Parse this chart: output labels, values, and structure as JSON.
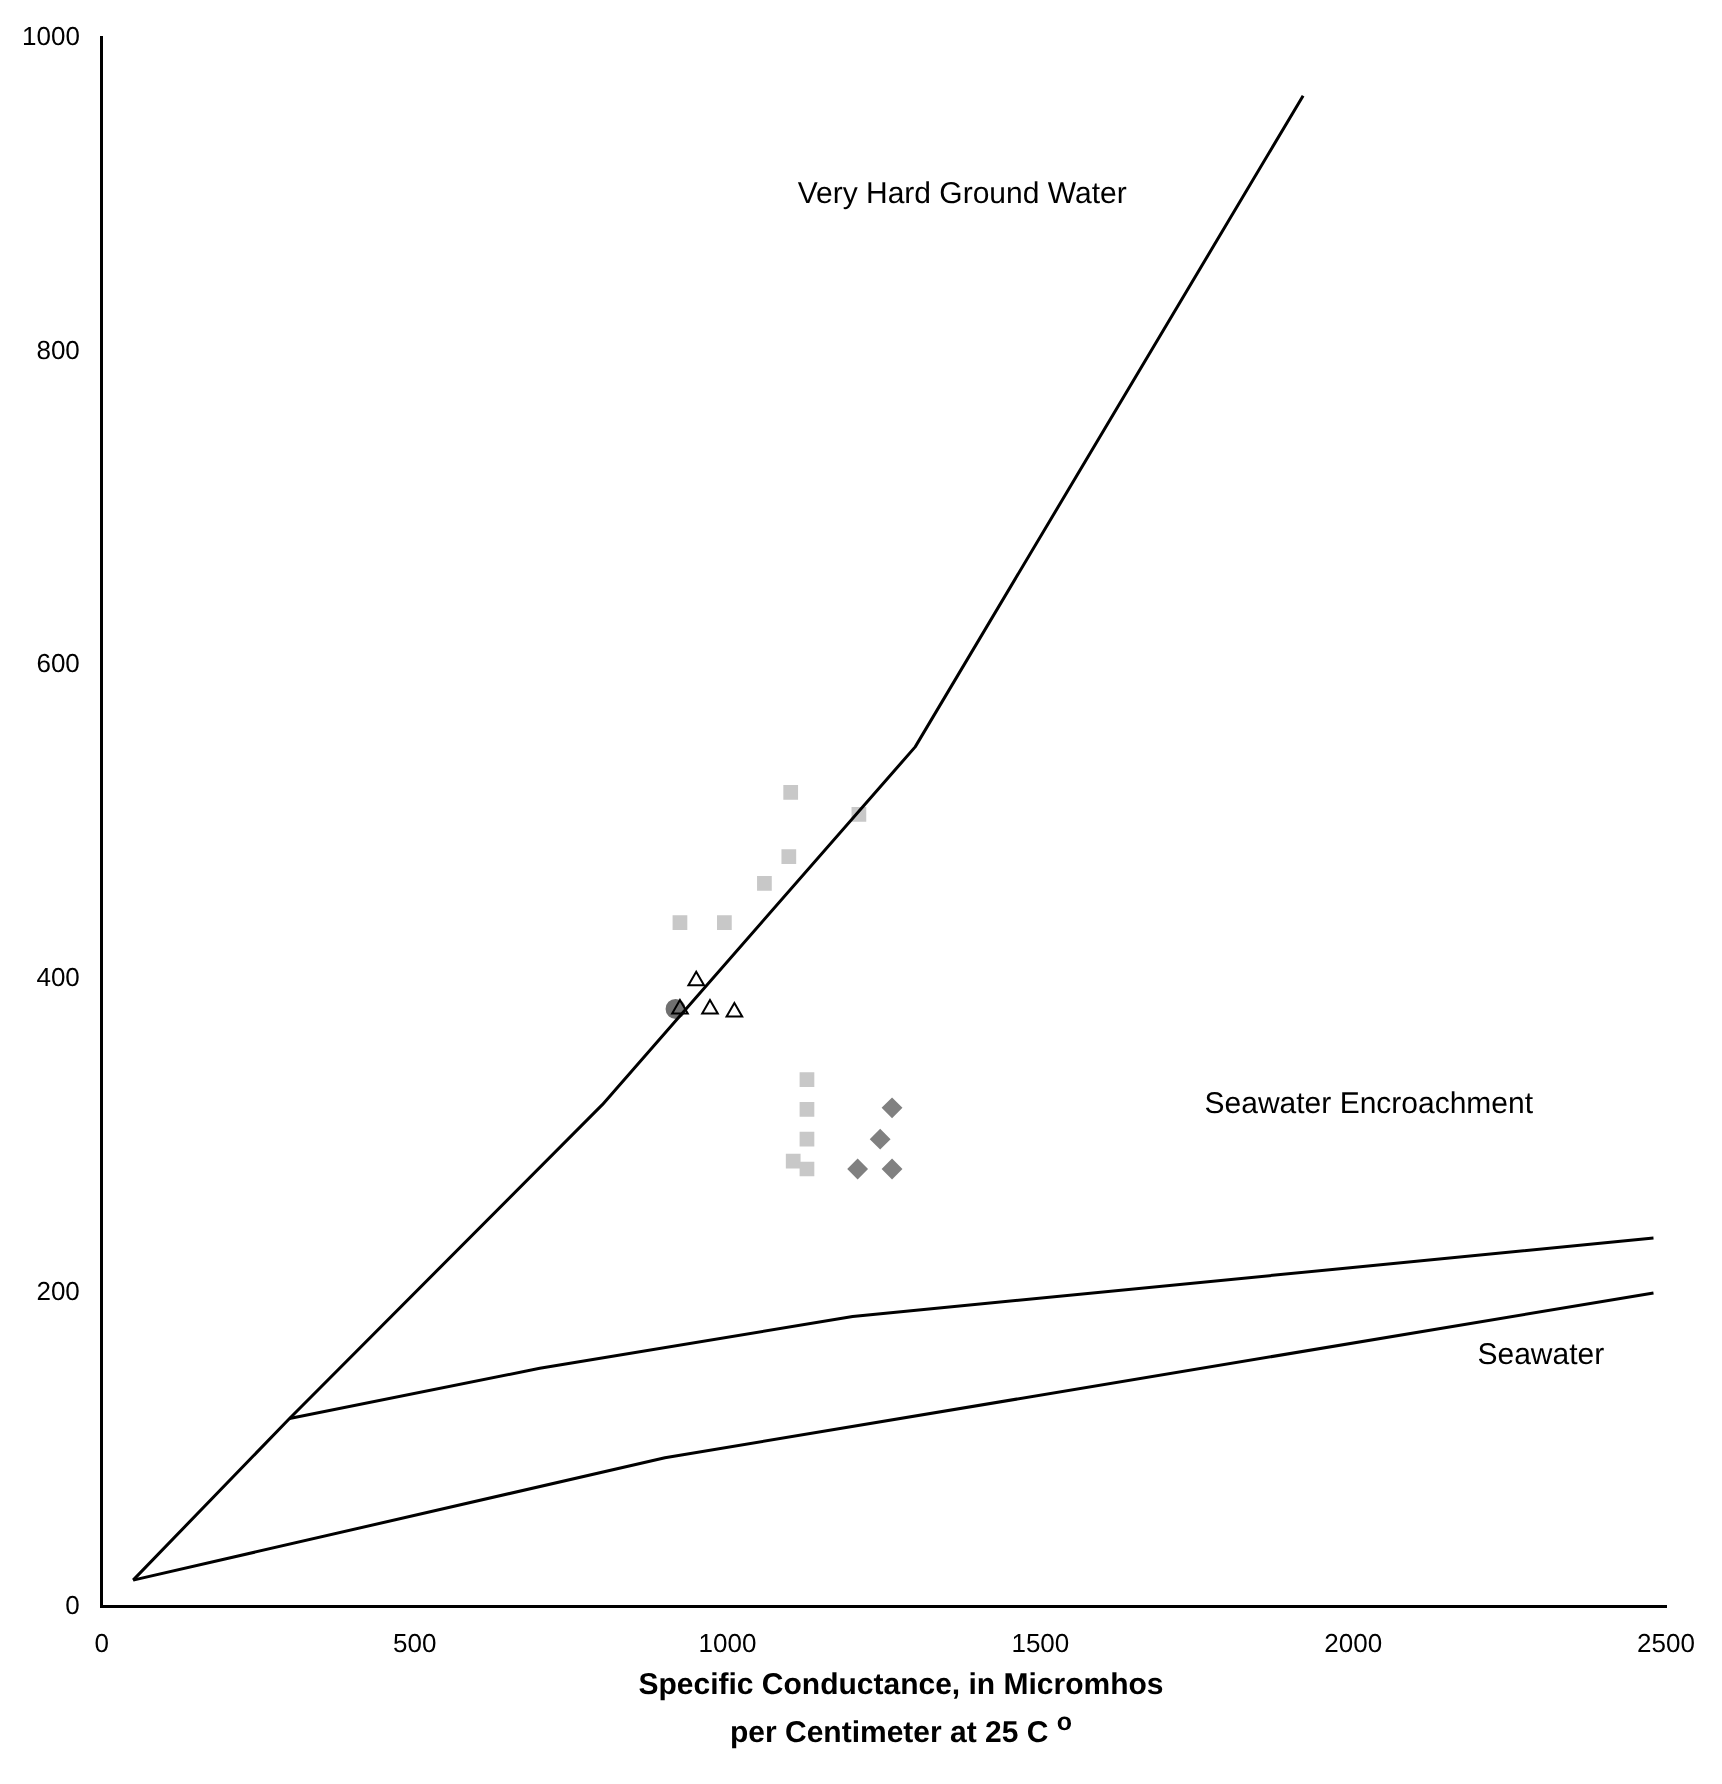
{
  "chart_data": {
    "type": "scatter",
    "xlabel": "Specific Conductance, in Micromhos\nper Centimeter at 25 C $^{o}$",
    "xlim": [
      0,
      2500
    ],
    "xticks": [
      0,
      500,
      1000,
      1500,
      2000,
      2500
    ],
    "ylim": [
      0,
      1000
    ],
    "yticks": [
      0,
      200,
      400,
      600,
      800,
      1000
    ],
    "grid": false,
    "legend": false,
    "series": [
      {
        "type": "line",
        "color": "#000000",
        "marker": "none",
        "x": [
          50,
          300,
          800,
          1300,
          1920
        ],
        "values": [
          17,
          120,
          320,
          548,
          963
        ]
      },
      {
        "type": "line",
        "color": "#000000",
        "marker": "none",
        "x": [
          300,
          700,
          1200,
          2480
        ],
        "values": [
          120,
          152,
          185,
          235
        ]
      },
      {
        "type": "line",
        "color": "#000000",
        "marker": "none",
        "x": [
          50,
          900,
          2480
        ],
        "values": [
          17,
          95,
          200
        ]
      },
      {
        "type": "scatter",
        "color": "#c8c8c8",
        "marker": "square",
        "x": [
          1101,
          1210,
          924,
          995,
          1059,
          1098,
          1127,
          1127,
          1127,
          1127,
          1105
        ],
        "values": [
          519,
          505,
          436,
          436,
          461,
          478,
          336,
          317,
          298,
          279,
          284
        ]
      },
      {
        "type": "scatter",
        "color": "#000000",
        "marker": "triangle",
        "x": [
          950,
          924,
          972,
          1011
        ],
        "values": [
          399,
          381,
          381,
          379
        ]
      },
      {
        "type": "scatter",
        "color": "#707070",
        "marker": "circle",
        "x": [
          917
        ],
        "values": [
          381
        ]
      },
      {
        "type": "scatter",
        "color": "#808080",
        "marker": "diamond",
        "x": [
          1263,
          1244,
          1263,
          1208
        ],
        "values": [
          318,
          298,
          279,
          279
        ]
      }
    ],
    "annotations": [
      "Very Hard Ground Water",
      "Seawater Encroachment",
      "Seawater"
    ]
  }
}
